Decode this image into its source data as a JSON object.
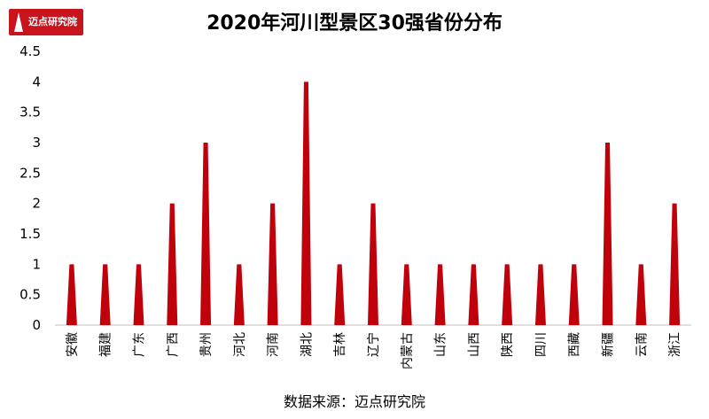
{
  "logo": {
    "text": "迈点研究院"
  },
  "source": "数据来源：迈点研究院",
  "chart_data": {
    "type": "bar",
    "title": "2020年河川型景区30强省份分布",
    "categories": [
      "安徽",
      "福建",
      "广东",
      "广西",
      "贵州",
      "河北",
      "河南",
      "湖北",
      "吉林",
      "辽宁",
      "内蒙古",
      "山东",
      "山西",
      "陕西",
      "四川",
      "西藏",
      "新疆",
      "云南",
      "浙江"
    ],
    "values": [
      1,
      1,
      1,
      2,
      3,
      1,
      2,
      4,
      1,
      2,
      1,
      1,
      1,
      1,
      1,
      1,
      3,
      1,
      2
    ],
    "ylim": [
      0,
      4.5
    ],
    "yticks": [
      "0",
      "0.5",
      "1",
      "1.5",
      "2",
      "2.5",
      "3",
      "3.5",
      "4",
      "4.5"
    ],
    "xlabel": "",
    "ylabel": "",
    "grid": false,
    "legend": "none",
    "bar_color": "#c0000b"
  }
}
